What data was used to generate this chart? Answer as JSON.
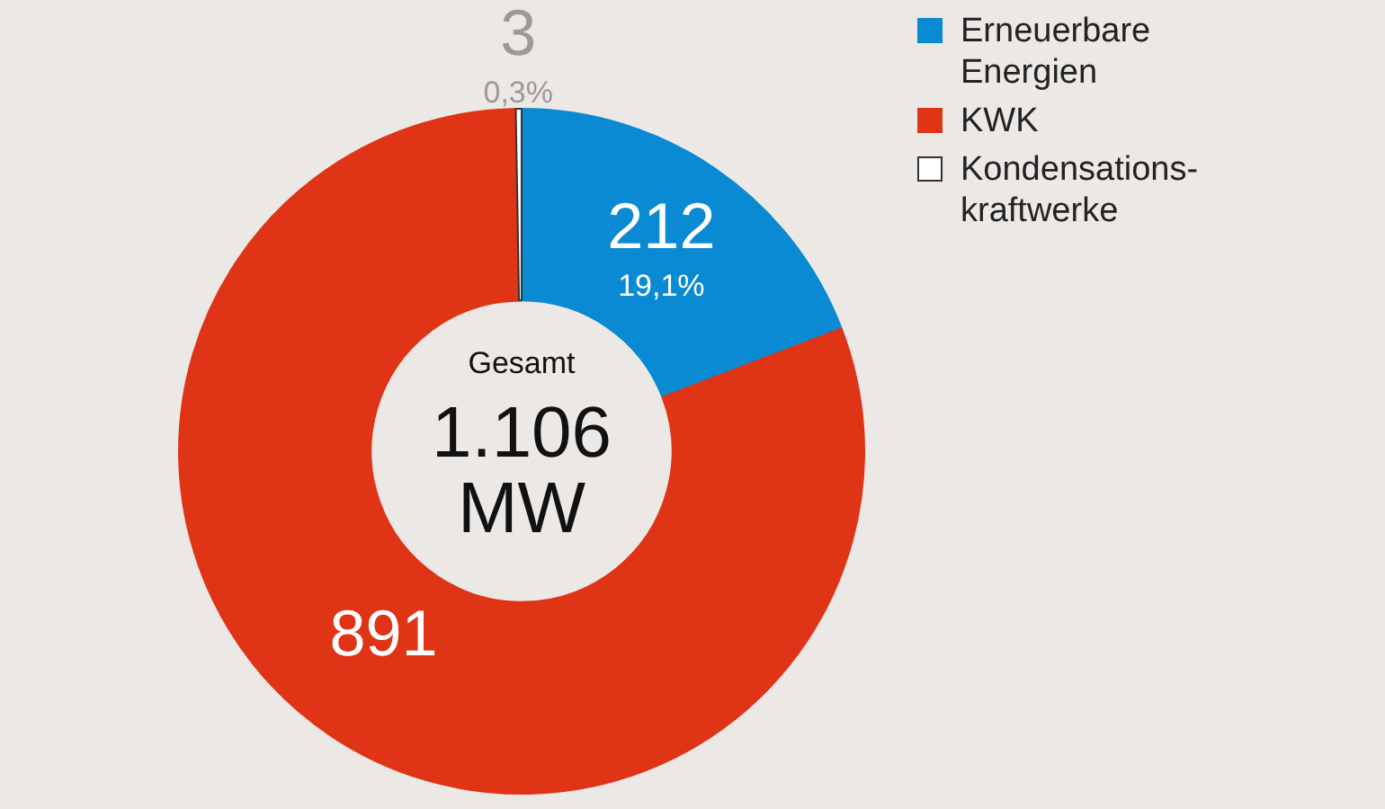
{
  "chart_data": {
    "type": "donut",
    "categories": [
      "Erneuerbare Energien",
      "KWK",
      "Kondensations-kraftwerke"
    ],
    "values": [
      212,
      891,
      3
    ],
    "colors": [
      "#0a8ad2",
      "#e03417",
      "#ffffff"
    ],
    "data_labels": true,
    "legend": "top right",
    "annotations": [
      "Gesamt",
      "1.106 MW",
      {
        "text": "19,1%",
        "x": "Erneuerbare Energien"
      },
      {
        "text": "0,3%",
        "x": "Kondensations-kraftwerke"
      }
    ]
  }
}
